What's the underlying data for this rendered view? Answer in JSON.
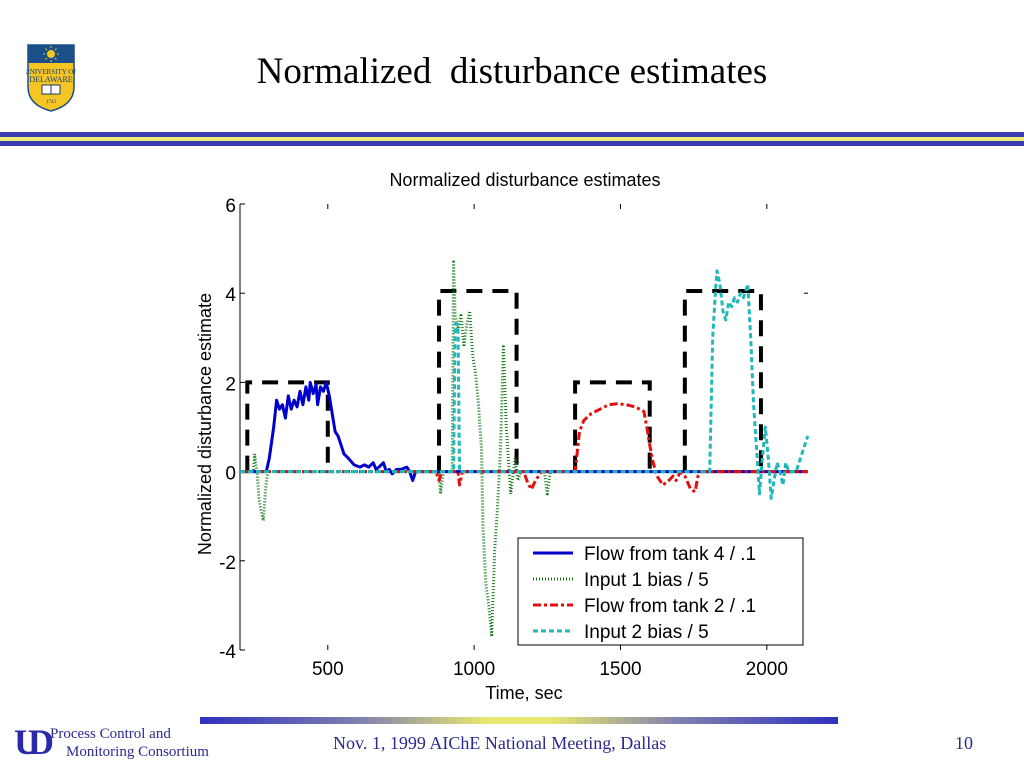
{
  "slide": {
    "title": "Normalized  disturbance estimates",
    "logo": {
      "icon": "university-of-delaware-shield-icon",
      "text_line1": "UNIVERSITY OF",
      "text_line2": "DELAWARE",
      "year": "1743"
    },
    "colors": {
      "banner_blue": "#3b3bb0",
      "banner_yellow": "#ecec78",
      "footer_text": "#2a2a90"
    }
  },
  "footer": {
    "logo_text": "UD",
    "org_line1": "Process Control and",
    "org_line2": "Monitoring Consortium",
    "event": "Nov. 1, 1999 AIChE National Meeting, Dallas",
    "page_number": "10"
  },
  "chart_data": {
    "type": "line",
    "title": "Normalized disturbance estimates",
    "xlabel": "Time, sec",
    "ylabel": "Normalized disturbance estimate",
    "xlim": [
      200,
      2140
    ],
    "ylim": [
      -4,
      6
    ],
    "xticks": [
      500,
      1000,
      1500,
      2000
    ],
    "yticks": [
      -4,
      -2,
      0,
      2,
      4,
      6
    ],
    "grid": false,
    "legend_position": "bottom-right",
    "actual_disturbances": {
      "name": "Actual disturbance (dashed black)",
      "color": "#000000",
      "pulses": [
        {
          "start": 225,
          "end": 500,
          "value": 2
        },
        {
          "start": 880,
          "end": 1145,
          "value": 4.05
        },
        {
          "start": 1345,
          "end": 1600,
          "value": 2
        },
        {
          "start": 1720,
          "end": 1980,
          "value": 4.05
        }
      ]
    },
    "series": [
      {
        "name": "Flow from tank 4 / .1",
        "color": "#0000cc",
        "style": "solid",
        "points": [
          [
            200,
            0
          ],
          [
            290,
            0
          ],
          [
            300,
            0.3
          ],
          [
            315,
            1.0
          ],
          [
            325,
            1.6
          ],
          [
            335,
            1.4
          ],
          [
            345,
            1.5
          ],
          [
            355,
            1.2
          ],
          [
            365,
            1.7
          ],
          [
            375,
            1.4
          ],
          [
            385,
            1.6
          ],
          [
            395,
            1.45
          ],
          [
            405,
            1.8
          ],
          [
            415,
            1.5
          ],
          [
            425,
            1.9
          ],
          [
            435,
            1.6
          ],
          [
            440,
            2.0
          ],
          [
            450,
            1.75
          ],
          [
            460,
            1.95
          ],
          [
            465,
            1.5
          ],
          [
            475,
            1.9
          ],
          [
            485,
            1.8
          ],
          [
            495,
            2.0
          ],
          [
            505,
            1.7
          ],
          [
            515,
            1.3
          ],
          [
            525,
            0.9
          ],
          [
            535,
            0.8
          ],
          [
            545,
            0.6
          ],
          [
            555,
            0.4
          ],
          [
            570,
            0.3
          ],
          [
            590,
            0.15
          ],
          [
            610,
            0.1
          ],
          [
            625,
            0.15
          ],
          [
            640,
            0.1
          ],
          [
            655,
            0.2
          ],
          [
            665,
            0.05
          ],
          [
            675,
            0.1
          ],
          [
            690,
            0.2
          ],
          [
            700,
            0.0
          ],
          [
            710,
            0.05
          ],
          [
            720,
            -0.05
          ],
          [
            735,
            0.05
          ],
          [
            750,
            0.05
          ],
          [
            770,
            0.1
          ],
          [
            780,
            0.0
          ],
          [
            790,
            -0.2
          ],
          [
            800,
            0.0
          ],
          [
            810,
            0
          ],
          [
            2140,
            0
          ]
        ]
      },
      {
        "name": "Input 1 bias / 5",
        "color": "#1a7a1a",
        "style": "dotted",
        "points": [
          [
            200,
            0
          ],
          [
            245,
            0
          ],
          [
            250,
            0.4
          ],
          [
            258,
            0
          ],
          [
            265,
            -0.6
          ],
          [
            272,
            -0.9
          ],
          [
            280,
            -1.1
          ],
          [
            287,
            -0.4
          ],
          [
            295,
            0
          ],
          [
            880,
            0
          ],
          [
            885,
            -0.5
          ],
          [
            895,
            0
          ],
          [
            925,
            0
          ],
          [
            930,
            4.7
          ],
          [
            935,
            3.5
          ],
          [
            945,
            3.2
          ],
          [
            955,
            3.5
          ],
          [
            965,
            2.8
          ],
          [
            975,
            3.3
          ],
          [
            985,
            3.6
          ],
          [
            995,
            2.6
          ],
          [
            1005,
            2.2
          ],
          [
            1015,
            1.5
          ],
          [
            1025,
            0.5
          ],
          [
            1030,
            -1.2
          ],
          [
            1040,
            -2.5
          ],
          [
            1050,
            -3.0
          ],
          [
            1060,
            -3.7
          ],
          [
            1070,
            -1.8
          ],
          [
            1080,
            -0.8
          ],
          [
            1090,
            0.5
          ],
          [
            1100,
            2.8
          ],
          [
            1110,
            1.0
          ],
          [
            1125,
            -0.5
          ],
          [
            1140,
            0.3
          ],
          [
            1150,
            -0.2
          ],
          [
            1160,
            0
          ],
          [
            1240,
            0
          ],
          [
            1250,
            -0.5
          ],
          [
            1260,
            0
          ],
          [
            2140,
            0
          ]
        ]
      },
      {
        "name": "Flow from tank 2 / .1",
        "color": "#e01010",
        "style": "dashdot",
        "points": [
          [
            200,
            0
          ],
          [
            870,
            0
          ],
          [
            880,
            -0.2
          ],
          [
            890,
            0
          ],
          [
            945,
            0
          ],
          [
            950,
            -0.3
          ],
          [
            960,
            0
          ],
          [
            1170,
            0
          ],
          [
            1180,
            -0.2
          ],
          [
            1195,
            -0.4
          ],
          [
            1210,
            -0.2
          ],
          [
            1220,
            -0.1
          ],
          [
            1230,
            0
          ],
          [
            1345,
            0
          ],
          [
            1350,
            0.3
          ],
          [
            1360,
            0.9
          ],
          [
            1375,
            1.15
          ],
          [
            1400,
            1.3
          ],
          [
            1430,
            1.4
          ],
          [
            1460,
            1.5
          ],
          [
            1490,
            1.52
          ],
          [
            1520,
            1.5
          ],
          [
            1550,
            1.45
          ],
          [
            1580,
            1.35
          ],
          [
            1590,
            1.0
          ],
          [
            1600,
            0.6
          ],
          [
            1612,
            0.2
          ],
          [
            1625,
            -0.1
          ],
          [
            1645,
            -0.3
          ],
          [
            1665,
            -0.2
          ],
          [
            1680,
            -0.1
          ],
          [
            1690,
            -0.2
          ],
          [
            1705,
            0.0
          ],
          [
            1720,
            -0.1
          ],
          [
            1740,
            -0.4
          ],
          [
            1755,
            -0.45
          ],
          [
            1765,
            -0.1
          ],
          [
            1775,
            0
          ],
          [
            2140,
            0
          ]
        ]
      },
      {
        "name": "Input 2 bias / 5",
        "color": "#20b8b8",
        "style": "dashed",
        "points": [
          [
            200,
            0
          ],
          [
            930,
            0
          ],
          [
            935,
            3.3
          ],
          [
            945,
            3.3
          ],
          [
            950,
            0
          ],
          [
            1805,
            0
          ],
          [
            1815,
            3.0
          ],
          [
            1825,
            4.1
          ],
          [
            1830,
            4.5
          ],
          [
            1840,
            4.2
          ],
          [
            1850,
            3.6
          ],
          [
            1860,
            3.4
          ],
          [
            1870,
            3.8
          ],
          [
            1880,
            3.7
          ],
          [
            1890,
            3.9
          ],
          [
            1900,
            3.8
          ],
          [
            1910,
            4.0
          ],
          [
            1920,
            3.9
          ],
          [
            1930,
            4.1
          ],
          [
            1935,
            4.2
          ],
          [
            1945,
            3.0
          ],
          [
            1955,
            1.5
          ],
          [
            1965,
            0.5
          ],
          [
            1975,
            -0.5
          ],
          [
            1985,
            0.3
          ],
          [
            1995,
            1.0
          ],
          [
            2005,
            0.3
          ],
          [
            2015,
            -0.6
          ],
          [
            2025,
            -0.2
          ],
          [
            2035,
            0.2
          ],
          [
            2045,
            0
          ],
          [
            2055,
            -0.3
          ],
          [
            2065,
            0.2
          ],
          [
            2075,
            0
          ],
          [
            2100,
            0
          ],
          [
            2120,
            0.4
          ],
          [
            2140,
            0.8
          ]
        ]
      }
    ]
  }
}
